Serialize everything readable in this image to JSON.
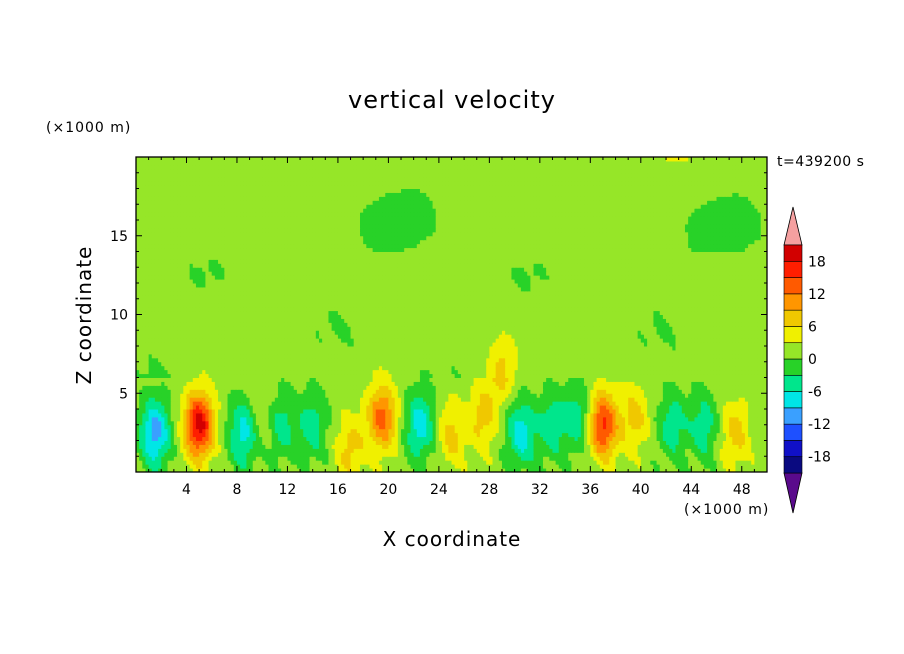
{
  "chart_data": {
    "type": "heatmap",
    "title": "vertical velocity",
    "xlabel": "X coordinate",
    "ylabel": "Z coordinate",
    "x_unit": "(×1000 m)",
    "z_unit": "(×1000 m)",
    "annotation": "t=439200 s",
    "xlim": [
      0,
      50
    ],
    "ylim": [
      0,
      20
    ],
    "x_ticks": [
      "4",
      "8",
      "12",
      "16",
      "20",
      "24",
      "28",
      "32",
      "36",
      "40",
      "44",
      "48"
    ],
    "y_ticks": [
      "5",
      "10",
      "15"
    ],
    "colorbar": {
      "levels": [
        -21,
        -18,
        -15,
        -12,
        -9,
        -6,
        -3,
        0,
        3,
        6,
        9,
        12,
        15,
        18,
        21
      ],
      "labels": [
        "18",
        "12",
        "6",
        "0",
        "-6",
        "-12",
        "-18"
      ],
      "colors": [
        "#5a0a8c",
        "#0a0a80",
        "#1010c8",
        "#1e50ff",
        "#3aa0ff",
        "#00e6e6",
        "#00e68c",
        "#28d228",
        "#96e628",
        "#f0f000",
        "#f0c800",
        "#ff9600",
        "#ff5a00",
        "#ff1e00",
        "#d20000",
        "#f5a0a0"
      ],
      "extend": "both"
    },
    "features": [
      {
        "x": 1.5,
        "z": 2.5,
        "w": -12
      },
      {
        "x": 5,
        "z": 3,
        "w": 18
      },
      {
        "x": 8.5,
        "z": 2.5,
        "w": -9
      },
      {
        "x": 10,
        "z": 3.5,
        "w": 3
      },
      {
        "x": 11.5,
        "z": 3,
        "w": -6
      },
      {
        "x": 14,
        "z": 3,
        "w": -6
      },
      {
        "x": 17,
        "z": 1.5,
        "w": 6
      },
      {
        "x": 19.5,
        "z": 3.5,
        "w": 12
      },
      {
        "x": 22.5,
        "z": 3,
        "w": -9
      },
      {
        "x": 25,
        "z": 2.5,
        "w": 6
      },
      {
        "x": 27.5,
        "z": 3.5,
        "w": 6
      },
      {
        "x": 29,
        "z": 6.5,
        "w": 6
      },
      {
        "x": 30.5,
        "z": 2.5,
        "w": -9
      },
      {
        "x": 33,
        "z": 3,
        "w": -6
      },
      {
        "x": 35,
        "z": 3.5,
        "w": -6
      },
      {
        "x": 37,
        "z": 3,
        "w": 15
      },
      {
        "x": 39.5,
        "z": 3.5,
        "w": 6
      },
      {
        "x": 42.5,
        "z": 3,
        "w": -6
      },
      {
        "x": 45,
        "z": 3,
        "w": -6
      },
      {
        "x": 47.5,
        "z": 2.5,
        "w": 6
      }
    ]
  }
}
